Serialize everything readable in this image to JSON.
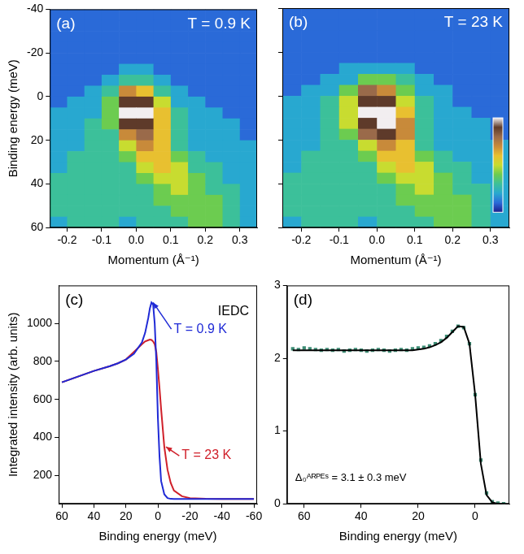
{
  "chart_data": [
    {
      "type": "heatmap",
      "panel": "(a)",
      "annotations": [
        "T = 0.9 K"
      ],
      "x_label": "Momentum (Å⁻¹)",
      "y_label": "Binding energy (meV)",
      "xlim": [
        -0.25,
        0.35
      ],
      "ylim": [
        60,
        -40
      ],
      "xticks": [
        -0.2,
        -0.1,
        {
          "value": 0,
          "label": "0.0"
        },
        0.1,
        0.2,
        0.3
      ],
      "yticks": [
        -40,
        -20,
        0,
        20,
        40,
        60
      ],
      "grid": false,
      "x_bins": [
        -0.25,
        -0.2,
        -0.15,
        -0.1,
        -0.05,
        0,
        0.05,
        0.1,
        0.15,
        0.2,
        0.25,
        0.3,
        0.35
      ],
      "y_bins": [
        -40,
        -35,
        -30,
        -25,
        -20,
        -15,
        -10,
        -5,
        0,
        5,
        10,
        15,
        20,
        25,
        30,
        35,
        40,
        45,
        50,
        55,
        60
      ],
      "color_range": [
        0,
        10
      ],
      "cells": [
        [
          1,
          1,
          1,
          1,
          1,
          1,
          1,
          1,
          1,
          1,
          1,
          1
        ],
        [
          1,
          1,
          1,
          1,
          1,
          1,
          1,
          1,
          1,
          1,
          1,
          1
        ],
        [
          1,
          1,
          1,
          1,
          1,
          1,
          1,
          1,
          1,
          1,
          1,
          1
        ],
        [
          1,
          1,
          1,
          1,
          1,
          1,
          1,
          1,
          1,
          1,
          1,
          1
        ],
        [
          1,
          1,
          1,
          1,
          1,
          1,
          1,
          1,
          1,
          1,
          1,
          1
        ],
        [
          1,
          1,
          1,
          1,
          2,
          2,
          1,
          1,
          1,
          1,
          1,
          1
        ],
        [
          1,
          1,
          1,
          2,
          3,
          3,
          2,
          1,
          1,
          1,
          1,
          1
        ],
        [
          1,
          1,
          2,
          3,
          7,
          6,
          3,
          2,
          1,
          1,
          1,
          1
        ],
        [
          1,
          2,
          2,
          4,
          9,
          9,
          5,
          2,
          2,
          1,
          1,
          1
        ],
        [
          2,
          2,
          2,
          4,
          10,
          10,
          6,
          3,
          2,
          2,
          1,
          1
        ],
        [
          2,
          2,
          3,
          4,
          9,
          9,
          6,
          3,
          2,
          2,
          2,
          1
        ],
        [
          2,
          2,
          3,
          3,
          7,
          8,
          6,
          3,
          2,
          2,
          2,
          1
        ],
        [
          2,
          2,
          3,
          3,
          5,
          7,
          6,
          3,
          2,
          2,
          2,
          2
        ],
        [
          2,
          3,
          3,
          3,
          4,
          6,
          6,
          4,
          3,
          2,
          2,
          2
        ],
        [
          2,
          3,
          3,
          3,
          3,
          5,
          6,
          5,
          3,
          3,
          2,
          2
        ],
        [
          3,
          3,
          3,
          3,
          3,
          4,
          5,
          5,
          4,
          3,
          2,
          2
        ],
        [
          3,
          3,
          3,
          3,
          3,
          3,
          4,
          5,
          4,
          3,
          3,
          2
        ],
        [
          3,
          3,
          3,
          3,
          3,
          3,
          4,
          4,
          4,
          4,
          3,
          2
        ],
        [
          3,
          3,
          3,
          3,
          3,
          3,
          3,
          4,
          4,
          4,
          3,
          2
        ],
        [
          2,
          3,
          3,
          3,
          2,
          3,
          3,
          3,
          4,
          4,
          3,
          2
        ]
      ]
    },
    {
      "type": "heatmap",
      "panel": "(b)",
      "annotations": [
        "T = 23 K"
      ],
      "x_label": "Momentum (Å⁻¹)",
      "xlim": [
        -0.25,
        0.35
      ],
      "ylim": [
        60,
        -40
      ],
      "xticks": [
        -0.2,
        -0.1,
        {
          "value": 0,
          "label": "0.0"
        },
        0.1,
        0.2,
        0.3
      ],
      "yticks": [
        -40,
        -20,
        0,
        20,
        40,
        60
      ],
      "grid": false,
      "tick_labels": "x",
      "x_bins": [
        -0.25,
        -0.2,
        -0.15,
        -0.1,
        -0.05,
        0,
        0.05,
        0.1,
        0.15,
        0.2,
        0.25,
        0.3,
        0.35
      ],
      "y_bins": [
        -40,
        -35,
        -30,
        -25,
        -20,
        -15,
        -10,
        -5,
        0,
        5,
        10,
        15,
        20,
        25,
        30,
        35,
        40,
        45,
        50,
        55,
        60
      ],
      "color_range": [
        0,
        10
      ],
      "colorbar": {
        "range": [
          0,
          10
        ]
      },
      "cells": [
        [
          1,
          1,
          1,
          1,
          1,
          1,
          1,
          1,
          1,
          1,
          1,
          1
        ],
        [
          1,
          1,
          1,
          1,
          1,
          1,
          1,
          1,
          1,
          1,
          1,
          1
        ],
        [
          1,
          1,
          1,
          1,
          1,
          1,
          1,
          1,
          1,
          1,
          1,
          1
        ],
        [
          1,
          1,
          1,
          1,
          1,
          1,
          1,
          1,
          1,
          1,
          1,
          1
        ],
        [
          1,
          1,
          1,
          1,
          1,
          1,
          1,
          1,
          1,
          1,
          1,
          1
        ],
        [
          1,
          1,
          1,
          2,
          2,
          2,
          2,
          1,
          1,
          1,
          1,
          1
        ],
        [
          1,
          1,
          2,
          2,
          4,
          4,
          3,
          2,
          1,
          1,
          1,
          1
        ],
        [
          1,
          2,
          2,
          4,
          8,
          7,
          4,
          2,
          2,
          1,
          1,
          1
        ],
        [
          2,
          2,
          3,
          5,
          9,
          9,
          5,
          3,
          2,
          1,
          1,
          1
        ],
        [
          2,
          2,
          3,
          5,
          10,
          10,
          6,
          3,
          2,
          2,
          1,
          1
        ],
        [
          2,
          2,
          3,
          5,
          9,
          10,
          7,
          3,
          2,
          2,
          2,
          1
        ],
        [
          2,
          2,
          3,
          4,
          8,
          9,
          7,
          3,
          2,
          2,
          2,
          1
        ],
        [
          2,
          2,
          3,
          3,
          5,
          7,
          6,
          3,
          2,
          2,
          2,
          2
        ],
        [
          2,
          3,
          3,
          3,
          4,
          6,
          6,
          4,
          3,
          2,
          2,
          2
        ],
        [
          2,
          3,
          3,
          3,
          3,
          5,
          6,
          5,
          3,
          3,
          2,
          2
        ],
        [
          3,
          3,
          3,
          3,
          3,
          4,
          5,
          5,
          4,
          3,
          2,
          2
        ],
        [
          3,
          3,
          3,
          3,
          3,
          3,
          4,
          5,
          4,
          3,
          3,
          2
        ],
        [
          3,
          3,
          3,
          3,
          3,
          3,
          4,
          4,
          4,
          4,
          3,
          2
        ],
        [
          3,
          3,
          3,
          3,
          3,
          3,
          3,
          4,
          4,
          4,
          3,
          2
        ],
        [
          2,
          3,
          3,
          3,
          2,
          3,
          3,
          3,
          4,
          4,
          3,
          2
        ]
      ]
    },
    {
      "type": "line",
      "panel": "(c)",
      "annotations": [
        "IEDC"
      ],
      "x_label": "Binding energy (meV)",
      "y_label": "Integrated intensity (arb. units)",
      "xlim": [
        62,
        -62
      ],
      "ylim": [
        50,
        1200
      ],
      "xticks": [
        60,
        40,
        20,
        0,
        -20,
        -40,
        -60
      ],
      "yticks": [
        200,
        400,
        600,
        800,
        1000
      ],
      "grid": false,
      "x": [
        60,
        50,
        40,
        30,
        25,
        20,
        15,
        10,
        8,
        6,
        5,
        4,
        3,
        2,
        1,
        0,
        -1,
        -2,
        -4,
        -6,
        -8,
        -10,
        -15,
        -20,
        -30,
        -40,
        -50,
        -60
      ],
      "series": [
        {
          "name": "T = 0.9 K",
          "color": "#1f2ad6",
          "values": [
            690,
            720,
            750,
            775,
            790,
            810,
            840,
            900,
            950,
            1030,
            1080,
            1110,
            1100,
            1000,
            800,
            500,
            300,
            170,
            100,
            80,
            76,
            75,
            75,
            75,
            75,
            75,
            75,
            75
          ]
        },
        {
          "name": "T = 23 K",
          "color": "#d0202a",
          "values": [
            690,
            720,
            750,
            775,
            790,
            810,
            850,
            890,
            905,
            912,
            915,
            913,
            905,
            890,
            850,
            760,
            660,
            550,
            350,
            230,
            160,
            120,
            90,
            80,
            76,
            75,
            75,
            75
          ]
        }
      ]
    },
    {
      "type": "scatter",
      "panel": "(d)",
      "annotations": [
        "Δ₀ᴬᴿᴾᴱˢ = 3.1 ± 0.3 meV"
      ],
      "x_label": "Binding energy (meV)",
      "xlim": [
        66,
        -12
      ],
      "ylim": [
        0,
        3
      ],
      "xticks": [
        60,
        40,
        20,
        0
      ],
      "yticks": [
        0,
        1,
        2,
        3
      ],
      "grid": false,
      "x": [
        64,
        62,
        60,
        58,
        56,
        54,
        52,
        50,
        48,
        46,
        44,
        42,
        40,
        38,
        36,
        34,
        32,
        30,
        28,
        26,
        24,
        22,
        20,
        18,
        16,
        14,
        12,
        10,
        8,
        6,
        4,
        2,
        0,
        -2,
        -4,
        -6,
        -8,
        -10
      ],
      "series": [
        {
          "type": "scatter",
          "color": "#3c8c74",
          "marker": "square",
          "values": [
            2.13,
            2.12,
            2.14,
            2.13,
            2.12,
            2.11,
            2.12,
            2.11,
            2.12,
            2.1,
            2.11,
            2.12,
            2.11,
            2.1,
            2.11,
            2.12,
            2.11,
            2.1,
            2.11,
            2.12,
            2.11,
            2.13,
            2.14,
            2.15,
            2.17,
            2.2,
            2.24,
            2.3,
            2.37,
            2.44,
            2.42,
            2.2,
            1.5,
            0.6,
            0.15,
            0.03,
            0.01,
            0
          ]
        },
        {
          "type": "line",
          "color": "#000000",
          "line_style": "solid",
          "values": [
            2.11,
            2.11,
            2.11,
            2.11,
            2.11,
            2.11,
            2.11,
            2.11,
            2.11,
            2.11,
            2.11,
            2.11,
            2.11,
            2.11,
            2.11,
            2.11,
            2.11,
            2.11,
            2.11,
            2.11,
            2.11,
            2.11,
            2.12,
            2.13,
            2.15,
            2.18,
            2.22,
            2.28,
            2.36,
            2.44,
            2.43,
            2.2,
            1.5,
            0.55,
            0.12,
            0.02,
            0,
            0
          ]
        }
      ]
    }
  ]
}
